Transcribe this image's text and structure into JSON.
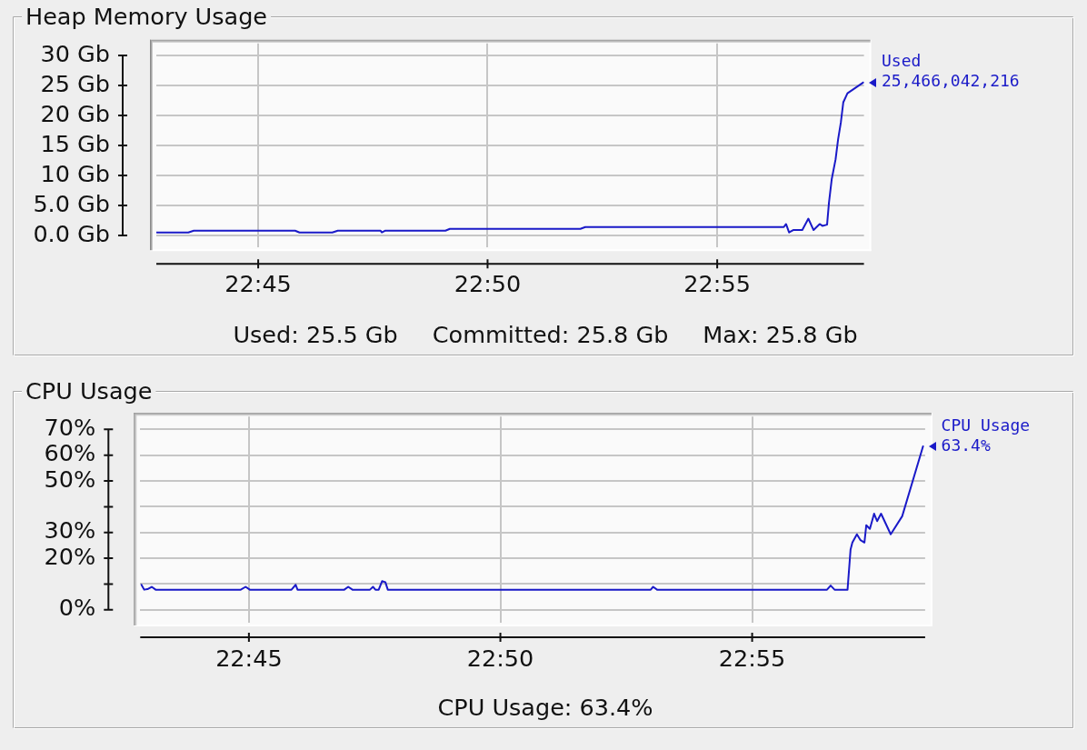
{
  "chart_data": [
    {
      "type": "line",
      "title": "Heap Memory Usage",
      "x": [
        22.7132,
        22.7246,
        22.7266,
        22.7634,
        22.765,
        22.7769,
        22.7789,
        22.7944,
        22.7949,
        22.7962,
        22.818,
        22.8196,
        22.867,
        22.8688,
        22.9409,
        22.9417,
        22.9428,
        22.9443,
        22.9476,
        22.9498,
        22.9517,
        22.9539,
        22.9549,
        22.9566,
        22.9573,
        22.9583,
        22.9597,
        22.9606,
        22.9616,
        22.9625,
        22.964,
        22.9698
      ],
      "series": [
        {
          "name": "Used",
          "color": "#1a1ac8",
          "values": [
            0.5,
            0.5,
            0.8,
            0.8,
            0.5,
            0.5,
            0.8,
            0.8,
            0.5,
            0.8,
            0.8,
            1.1,
            1.1,
            1.4,
            1.4,
            1.9,
            0.5,
            0.9,
            0.9,
            2.8,
            0.9,
            1.9,
            1.6,
            1.8,
            5.5,
            9.4,
            12.7,
            16.0,
            18.8,
            22.2,
            23.7,
            25.5
          ]
        }
      ],
      "xlim": [
        22.713,
        22.97
      ],
      "xticks": [
        {
          "value": 22.75,
          "label": "22:45"
        },
        {
          "value": 22.8333,
          "label": "22:50"
        },
        {
          "value": 22.9167,
          "label": "22:55"
        }
      ],
      "ylim": [
        -2,
        32
      ],
      "yticks": [
        {
          "value": 0,
          "label": "0.0 Gb"
        },
        {
          "value": 5,
          "label": "5.0 Gb"
        },
        {
          "value": 10,
          "label": "10 Gb"
        },
        {
          "value": 15,
          "label": "15 Gb"
        },
        {
          "value": 20,
          "label": "20 Gb"
        },
        {
          "value": 25,
          "label": "25 Gb"
        },
        {
          "value": 30,
          "label": "30 Gb"
        }
      ],
      "grid": true,
      "annotations": [
        {
          "text": "25,466,042,216",
          "x": 22.9698,
          "y": 25.5
        },
        "Used: 25.5 Gb",
        "Committed: 25.8 Gb",
        "Max: 25.8 Gb"
      ]
    },
    {
      "type": "line",
      "title": "CPU Usage",
      "x": [
        22.7144,
        22.7153,
        22.7164,
        22.7178,
        22.7191,
        22.7473,
        22.7489,
        22.7503,
        22.7641,
        22.7655,
        22.7661,
        22.7816,
        22.7829,
        22.7843,
        22.7901,
        22.7911,
        22.7919,
        22.793,
        22.7941,
        22.7952,
        22.796,
        22.8831,
        22.8839,
        22.8852,
        22.9415,
        22.9427,
        22.944,
        22.9483,
        22.9493,
        22.9499,
        22.9514,
        22.9526,
        22.9539,
        22.9545,
        22.9557,
        22.9571,
        22.9581,
        22.9594,
        22.9626,
        22.9664,
        22.9733
      ],
      "series": [
        {
          "name": "CPU Usage",
          "color": "#1a1ac8",
          "values": [
            9.7,
            7.8,
            8.0,
            8.9,
            7.8,
            7.8,
            8.9,
            7.8,
            7.8,
            9.7,
            7.8,
            7.8,
            8.9,
            7.8,
            7.8,
            8.9,
            7.8,
            7.8,
            11.1,
            10.7,
            7.8,
            7.8,
            8.9,
            7.8,
            7.8,
            9.4,
            7.8,
            7.8,
            23.4,
            26.1,
            29.3,
            27.0,
            26.1,
            32.8,
            31.4,
            37.3,
            34.4,
            37.3,
            29.3,
            36.3,
            63.4
          ],
          "value_labels": [
            null,
            null,
            null,
            null,
            null,
            null,
            null,
            null,
            null,
            null,
            null,
            null,
            null,
            null,
            null,
            null,
            null,
            null,
            null,
            null,
            null,
            null,
            null,
            null,
            null,
            null,
            null,
            null,
            null,
            null,
            null,
            null,
            null,
            null,
            null,
            null,
            null,
            null,
            null,
            null,
            "63.4%"
          ]
        }
      ],
      "xlim": [
        22.714,
        22.974
      ],
      "xticks": [
        {
          "value": 22.75,
          "label": "22:45"
        },
        {
          "value": 22.8333,
          "label": "22:50"
        },
        {
          "value": 22.9167,
          "label": "22:55"
        }
      ],
      "ylim": [
        -5,
        75
      ],
      "yticks": [
        {
          "value": 0,
          "label": "0%"
        },
        {
          "value": 10,
          "label": null
        },
        {
          "value": 20,
          "label": "20%"
        },
        {
          "value": 30,
          "label": "30%"
        },
        {
          "value": 40,
          "label": null
        },
        {
          "value": 50,
          "label": "50%"
        },
        {
          "value": 60,
          "label": "60%"
        },
        {
          "value": 70,
          "label": "70%"
        }
      ],
      "grid": true,
      "annotations": [
        "CPU Usage: 63.4%"
      ]
    }
  ]
}
